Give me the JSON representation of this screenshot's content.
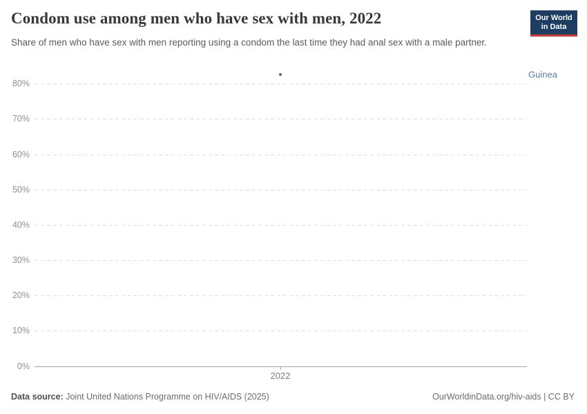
{
  "header": {
    "title": "Condom use among men who have sex with men, 2022",
    "subtitle": "Share of men who have sex with men reporting using a condom the last time they had anal sex with a male partner.",
    "logo": {
      "line1": "Our World",
      "line2": "in Data",
      "bg_color": "#1d3d63",
      "stripe_color": "#d73a34"
    }
  },
  "chart_data": {
    "type": "scatter",
    "title": "Condom use among men who have sex with men, 2022",
    "x": [
      2022
    ],
    "series": [
      {
        "name": "Guinea",
        "values": [
          82.6
        ]
      }
    ],
    "xlabel": "",
    "ylabel": "",
    "ylim": [
      0,
      83
    ],
    "xticks": [
      {
        "value": 2022,
        "label": "2022"
      }
    ],
    "yticks": [
      {
        "value": 0,
        "label": "0%"
      },
      {
        "value": 10,
        "label": "10%"
      },
      {
        "value": 20,
        "label": "20%"
      },
      {
        "value": 30,
        "label": "30%"
      },
      {
        "value": 40,
        "label": "40%"
      },
      {
        "value": 50,
        "label": "50%"
      },
      {
        "value": 60,
        "label": "60%"
      },
      {
        "value": 70,
        "label": "70%"
      },
      {
        "value": 80,
        "label": "80%"
      }
    ],
    "grid": "horizontal-dashed",
    "legend_position": "right-of-point",
    "point_color": "#4c6a9c",
    "entity_label_color": "#5b7bab"
  },
  "footer": {
    "source_label": "Data source:",
    "source_text": "Joint United Nations Programme on HIV/AIDS (2025)",
    "credit": "OurWorldinData.org/hiv-aids | CC BY"
  }
}
